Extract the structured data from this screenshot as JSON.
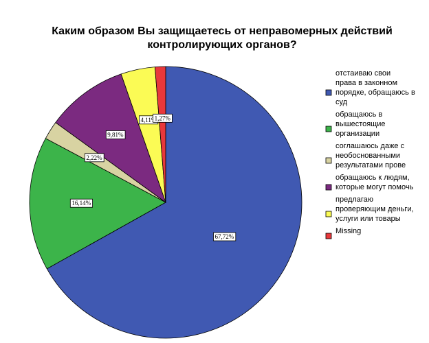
{
  "chart_data": {
    "type": "pie",
    "title": "Каким образом Вы защищаетесь от неправомерных действий контролирующих органов?",
    "title_lines": [
      "Каким образом Вы защищаетесь от неправомерных действий",
      "контролирующих органов?"
    ],
    "slices": [
      {
        "legend_lines": [
          "отстаиваю свои",
          "права в законном",
          "порядке, обращаюсь в",
          "суд"
        ],
        "value": 67.72,
        "value_label": "67,72%",
        "color": "#4059b2"
      },
      {
        "legend_lines": [
          "обращаюсь в",
          "вышестоящие",
          "организации"
        ],
        "value": 16.14,
        "value_label": "16,14%",
        "color": "#3cb44a"
      },
      {
        "legend_lines": [
          "соглашаюсь даже с",
          "необоснованными",
          "результатами прове"
        ],
        "value": 2.22,
        "value_label": "2,22%",
        "color": "#d8d3a2"
      },
      {
        "legend_lines": [
          "обращаюсь к людям,",
          "которые могут помочь"
        ],
        "value": 9.81,
        "value_label": "9,81%",
        "color": "#7b2a80"
      },
      {
        "legend_lines": [
          "предлагаю",
          "проверяющим деньги,",
          "услуги или товары"
        ],
        "value": 4.11,
        "value_label": "4,11%",
        "color": "#fbfb55"
      },
      {
        "legend_lines": [
          "Missing"
        ],
        "value": 1.27,
        "value_label": "1,27%",
        "color": "#e8383b"
      }
    ],
    "legend_position": "right"
  }
}
